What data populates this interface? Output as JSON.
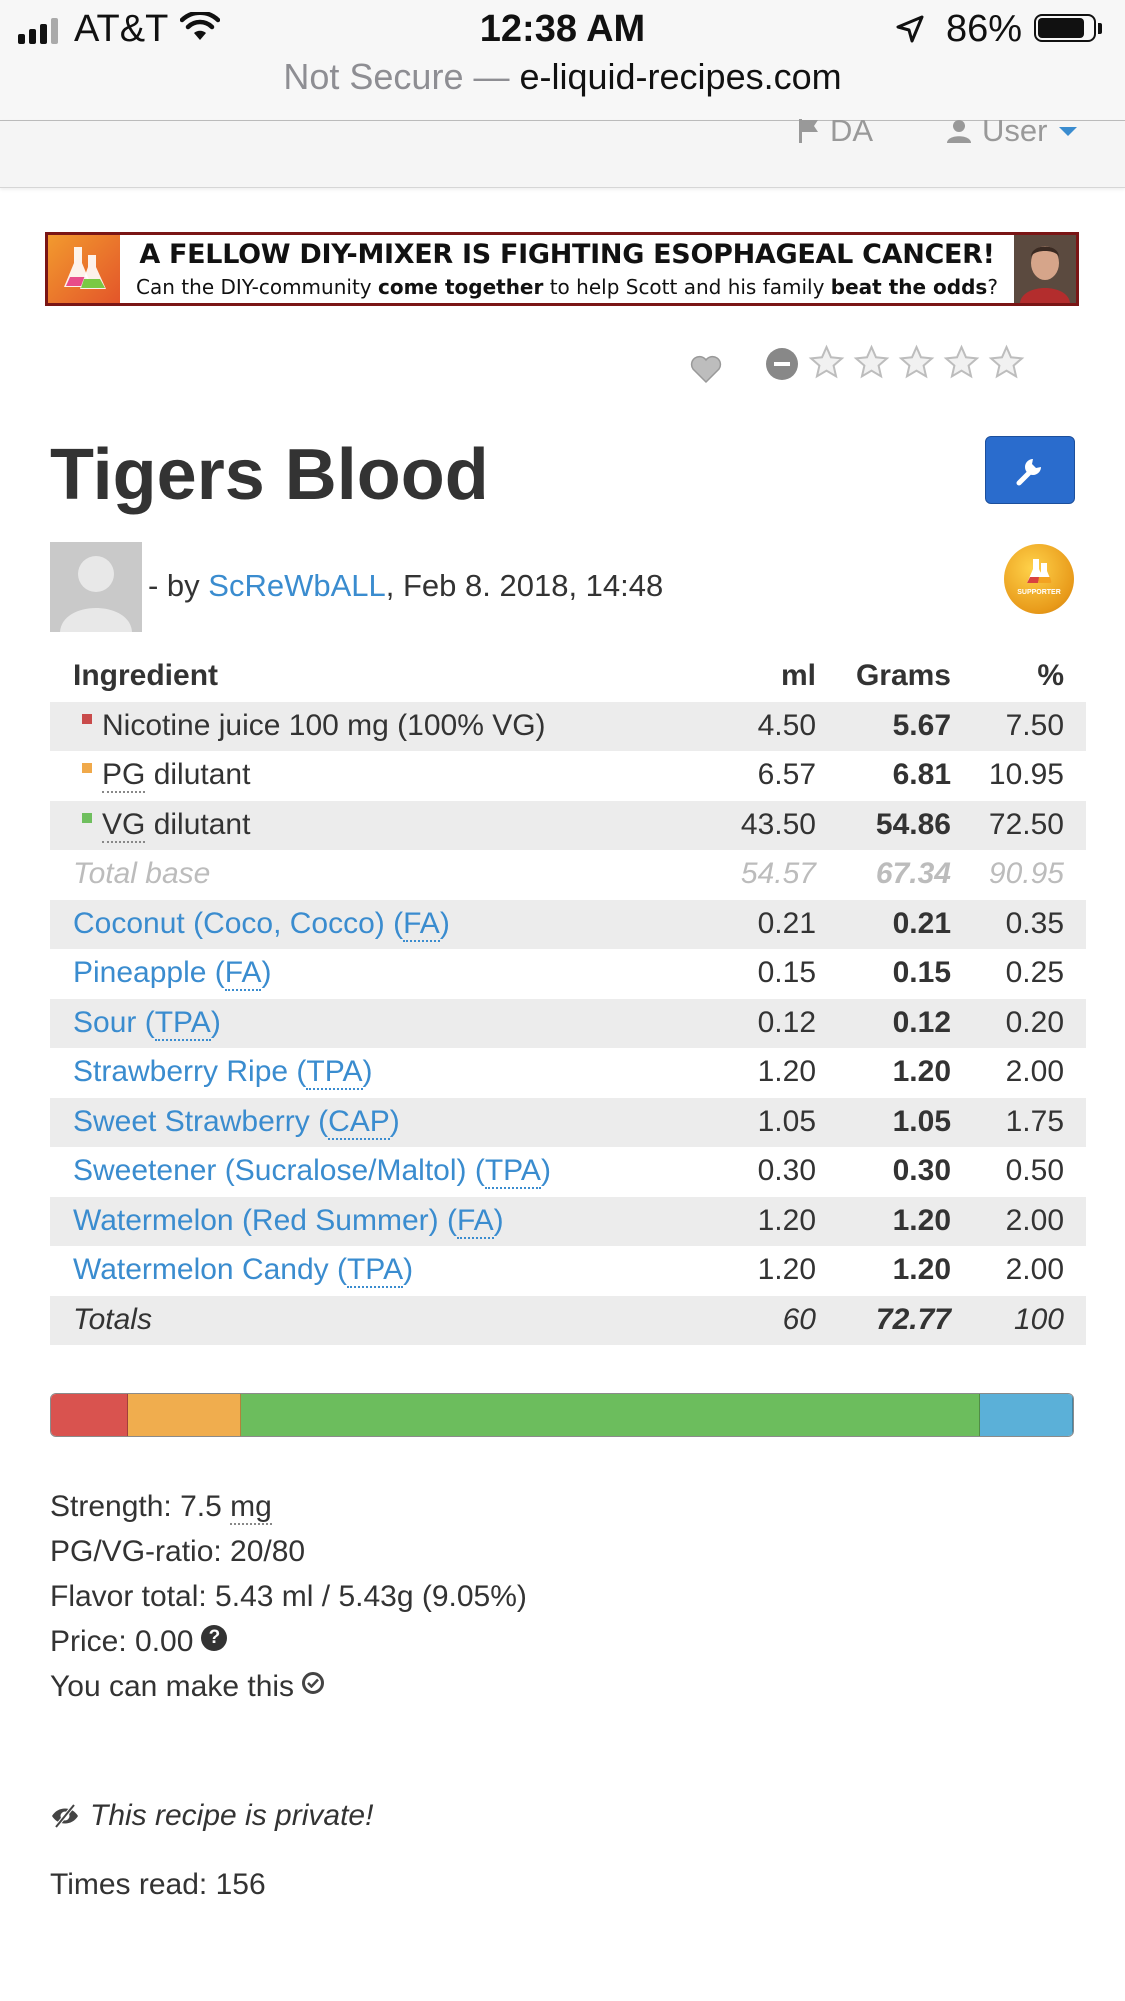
{
  "status_bar": {
    "carrier": "AT&T",
    "time": "12:38 AM",
    "battery": "86%",
    "battery_level": 0.86
  },
  "address_bar": {
    "security": "Not Secure —",
    "domain": "e-liquid-recipes.com"
  },
  "nav": {
    "language": "DA",
    "user": "User"
  },
  "banner": {
    "title": "A FELLOW DIY-MIXER IS FIGHTING ESOPHAGEAL CANCER!",
    "sub_1": "Can the DIY-community ",
    "sub_2": "come together",
    "sub_3": " to help Scott and his family ",
    "sub_4": "beat the odds",
    "sub_5": "?"
  },
  "rating": {
    "stars": 0,
    "max_stars": 5
  },
  "recipe": {
    "title": "Tigers Blood",
    "by": "- by ",
    "author": "ScReWbALL",
    "date": ", Feb 8. 2018, 14:48",
    "supporter_badge": "SUPPORTER"
  },
  "table": {
    "headers": [
      "Ingredient",
      "ml",
      "Grams",
      "%"
    ],
    "base_rows": [
      {
        "name": "Nicotine juice 100 mg (100% VG)",
        "ml": "4.50",
        "grams": "5.67",
        "pct": "7.50",
        "color": "#c94b4b"
      },
      {
        "name_abbr": "PG",
        "name_rest": " dilutant",
        "ml": "6.57",
        "grams": "6.81",
        "pct": "10.95",
        "color": "#f0a94a"
      },
      {
        "name_abbr": "VG",
        "name_rest": " dilutant",
        "ml": "43.50",
        "grams": "54.86",
        "pct": "72.50",
        "color": "#6fbf5e"
      }
    ],
    "total_base": {
      "label": "Total base",
      "ml": "54.57",
      "grams": "67.34",
      "pct": "90.95"
    },
    "flavors": [
      {
        "name": "Coconut (Coco, Cocco) (",
        "abbr": "FA",
        "close": ")",
        "ml": "0.21",
        "grams": "0.21",
        "pct": "0.35"
      },
      {
        "name": "Pineapple (",
        "abbr": "FA",
        "close": ")",
        "ml": "0.15",
        "grams": "0.15",
        "pct": "0.25"
      },
      {
        "name": "Sour (",
        "abbr": "TPA",
        "close": ")",
        "ml": "0.12",
        "grams": "0.12",
        "pct": "0.20"
      },
      {
        "name": "Strawberry Ripe (",
        "abbr": "TPA",
        "close": ")",
        "ml": "1.20",
        "grams": "1.20",
        "pct": "2.00"
      },
      {
        "name": "Sweet Strawberry (",
        "abbr": "CAP",
        "close": ")",
        "ml": "1.05",
        "grams": "1.05",
        "pct": "1.75"
      },
      {
        "name": "Sweetener (Sucralose/Maltol) (",
        "abbr": "TPA",
        "close": ")",
        "ml": "0.30",
        "grams": "0.30",
        "pct": "0.50"
      },
      {
        "name": "Watermelon (Red Summer) (",
        "abbr": "FA",
        "close": ")",
        "ml": "1.20",
        "grams": "1.20",
        "pct": "2.00"
      },
      {
        "name": "Watermelon Candy (",
        "abbr": "TPA",
        "close": ")",
        "ml": "1.20",
        "grams": "1.20",
        "pct": "2.00"
      }
    ],
    "totals": {
      "label": "Totals",
      "ml": "60",
      "grams": "72.77",
      "pct": "100"
    }
  },
  "composition_bar": [
    {
      "name": "nicotine",
      "pct": 7.5,
      "color": "#d9534f"
    },
    {
      "name": "pg",
      "pct": 10.95,
      "color": "#f0ad4e"
    },
    {
      "name": "vg",
      "pct": 72.5,
      "color": "#6cbd5d"
    },
    {
      "name": "flavor",
      "pct": 9.05,
      "color": "#5bb0d8"
    }
  ],
  "stats": {
    "strength_label": "Strength: 7.5 ",
    "strength_unit": "mg",
    "ratio": "PG/VG-ratio: 20/80",
    "flavor_total": "Flavor total: 5.43 ml / 5.43g (9.05%)",
    "price": "Price: 0.00",
    "can_make": "You can make this"
  },
  "private_note": "This recipe is private!",
  "times_read": "Times read: 156"
}
